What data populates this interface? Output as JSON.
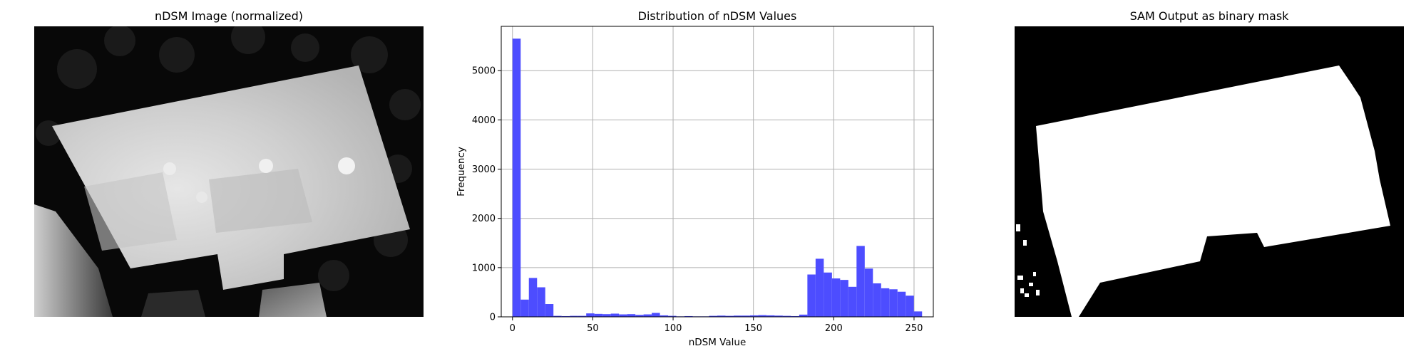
{
  "panels": {
    "left": {
      "title": "nDSM Image (normalized)"
    },
    "middle": {
      "title": "Distribution of nDSM Values"
    },
    "right": {
      "title": "SAM Output as binary mask"
    }
  },
  "colors": {
    "bar": "#4d4dff",
    "grid": "#b0b0b0",
    "mask_fg": "#ffffff",
    "mask_bg": "#000000"
  },
  "chart_data": {
    "type": "bar",
    "title": "Distribution of nDSM Values",
    "xlabel": "nDSM Value",
    "ylabel": "Frequency",
    "xlim": [
      -7,
      262
    ],
    "ylim": [
      0,
      5900
    ],
    "grid": true,
    "bin_width": 5.1,
    "x_start": 0,
    "values": [
      5650,
      350,
      790,
      600,
      260,
      20,
      15,
      20,
      20,
      70,
      60,
      55,
      65,
      50,
      55,
      40,
      50,
      80,
      30,
      20,
      10,
      15,
      10,
      10,
      20,
      25,
      20,
      25,
      25,
      30,
      35,
      30,
      25,
      20,
      15,
      45,
      860,
      1180,
      900,
      780,
      750,
      610,
      1440,
      980,
      680,
      580,
      560,
      510,
      430,
      110
    ],
    "xticks": [
      0,
      50,
      100,
      150,
      200,
      250
    ],
    "yticks": [
      0,
      1000,
      2000,
      3000,
      4000,
      5000
    ]
  }
}
